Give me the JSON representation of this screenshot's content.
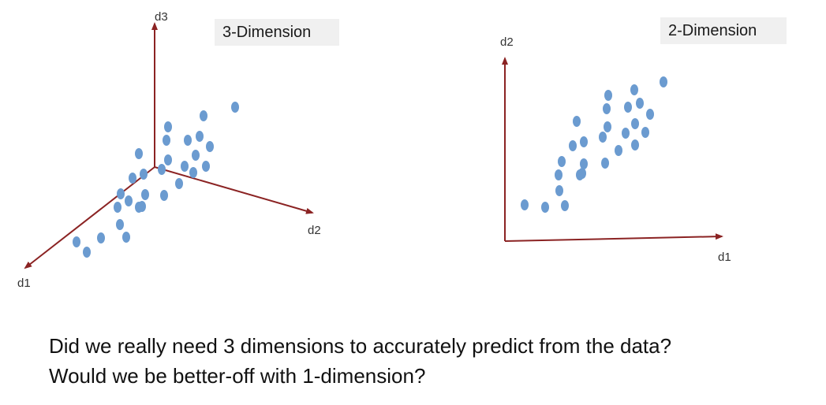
{
  "left_panel": {
    "title": "3-Dimension",
    "axis_labels": {
      "d1": "d1",
      "d2": "d2",
      "d3": "d3"
    }
  },
  "right_panel": {
    "title": "2-Dimension",
    "axis_labels": {
      "x": "d1",
      "y": "d2"
    }
  },
  "caption": {
    "line1": "Did we really need 3 dimensions to accurately predict from the data?",
    "line2": "Would we be better-off with 1-dimension?"
  },
  "colors": {
    "axis": "#8b2323",
    "point": "#6b9bd0"
  }
}
